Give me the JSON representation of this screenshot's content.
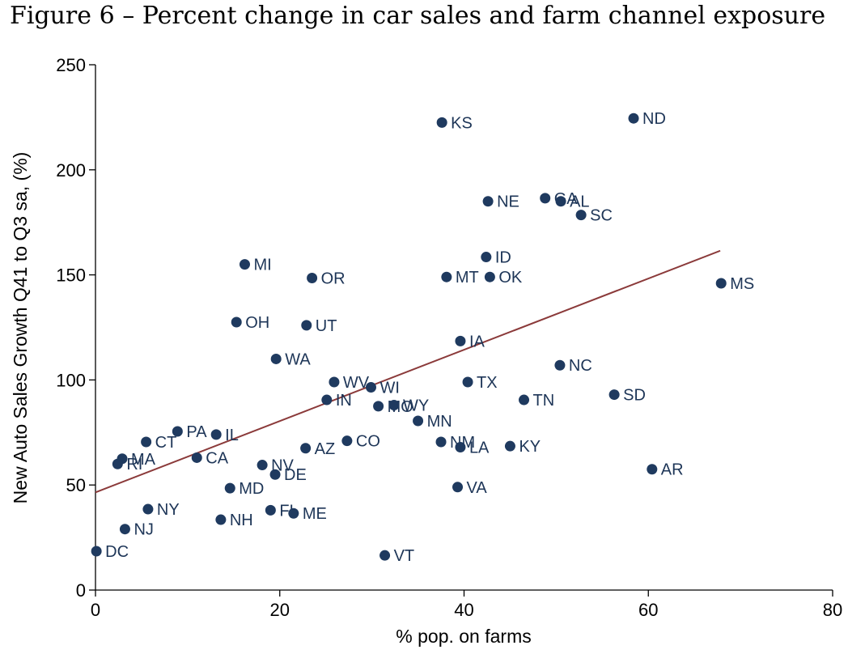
{
  "figure_title": "Figure 6 – Percent change in car sales and farm channel exposure",
  "chart_data": {
    "type": "scatter",
    "xlabel": "% pop. on farms",
    "ylabel": "New Auto Sales Growth Q41 to Q3 sa, (%)",
    "xlim": [
      0,
      80
    ],
    "ylim": [
      0,
      250
    ],
    "xticks": [
      0,
      20,
      40,
      60,
      80
    ],
    "yticks": [
      0,
      50,
      100,
      150,
      200,
      250
    ],
    "grid": false,
    "legend": "none",
    "colors": {
      "points": "#1f3a5f",
      "fit_line": "#8b3a3a"
    },
    "fit_line": {
      "x": [
        0,
        67.8
      ],
      "y": [
        46.5,
        161.5
      ]
    },
    "points": [
      {
        "label": "KS",
        "x": 37.6,
        "y": 222.5
      },
      {
        "label": "ND",
        "x": 58.4,
        "y": 224.5
      },
      {
        "label": "NE",
        "x": 42.6,
        "y": 185
      },
      {
        "label": "GA",
        "x": 48.8,
        "y": 186.5
      },
      {
        "label": "AL",
        "x": 50.5,
        "y": 185
      },
      {
        "label": "SC",
        "x": 52.7,
        "y": 178.5
      },
      {
        "label": "ID",
        "x": 42.4,
        "y": 158.5
      },
      {
        "label": "MI",
        "x": 16.2,
        "y": 155
      },
      {
        "label": "OR",
        "x": 23.5,
        "y": 148.5
      },
      {
        "label": "MT",
        "x": 38.1,
        "y": 149
      },
      {
        "label": "OK",
        "x": 42.8,
        "y": 149
      },
      {
        "label": "MS",
        "x": 67.9,
        "y": 146
      },
      {
        "label": "OH",
        "x": 15.3,
        "y": 127.5
      },
      {
        "label": "UT",
        "x": 22.9,
        "y": 126
      },
      {
        "label": "IA",
        "x": 39.6,
        "y": 118.5
      },
      {
        "label": "WA",
        "x": 19.6,
        "y": 110
      },
      {
        "label": "NC",
        "x": 50.4,
        "y": 107
      },
      {
        "label": "WV",
        "x": 25.9,
        "y": 99
      },
      {
        "label": "WI",
        "x": 29.9,
        "y": 96.5
      },
      {
        "label": "TX",
        "x": 40.4,
        "y": 99
      },
      {
        "label": "SD",
        "x": 56.3,
        "y": 93
      },
      {
        "label": "IN",
        "x": 25.1,
        "y": 90.5
      },
      {
        "label": "TN",
        "x": 46.5,
        "y": 90.5
      },
      {
        "label": "MO",
        "x": 30.7,
        "y": 87.5
      },
      {
        "label": "WY",
        "x": 32.4,
        "y": 88
      },
      {
        "label": "MN",
        "x": 35.0,
        "y": 80.5
      },
      {
        "label": "PA",
        "x": 8.9,
        "y": 75.5
      },
      {
        "label": "IL",
        "x": 13.1,
        "y": 74
      },
      {
        "label": "CT",
        "x": 5.5,
        "y": 70.5
      },
      {
        "label": "CO",
        "x": 27.3,
        "y": 71
      },
      {
        "label": "NM",
        "x": 37.5,
        "y": 70.5
      },
      {
        "label": "AZ",
        "x": 22.8,
        "y": 67.5
      },
      {
        "label": "LA",
        "x": 39.6,
        "y": 68
      },
      {
        "label": "KY",
        "x": 45.0,
        "y": 68.5
      },
      {
        "label": "MA",
        "x": 2.9,
        "y": 62.5
      },
      {
        "label": "CA",
        "x": 11.0,
        "y": 63
      },
      {
        "label": "RI",
        "x": 2.4,
        "y": 60
      },
      {
        "label": "NV",
        "x": 18.1,
        "y": 59.5
      },
      {
        "label": "DE",
        "x": 19.5,
        "y": 55
      },
      {
        "label": "AR",
        "x": 60.4,
        "y": 57.5
      },
      {
        "label": "MD",
        "x": 14.6,
        "y": 48.5
      },
      {
        "label": "VA",
        "x": 39.3,
        "y": 49
      },
      {
        "label": "NY",
        "x": 5.7,
        "y": 38.5
      },
      {
        "label": "FL",
        "x": 19.0,
        "y": 38
      },
      {
        "label": "ME",
        "x": 21.5,
        "y": 36.5
      },
      {
        "label": "NH",
        "x": 13.6,
        "y": 33.5
      },
      {
        "label": "NJ",
        "x": 3.2,
        "y": 29
      },
      {
        "label": "DC",
        "x": 0.1,
        "y": 18.5
      },
      {
        "label": "VT",
        "x": 31.4,
        "y": 16.5
      }
    ]
  }
}
